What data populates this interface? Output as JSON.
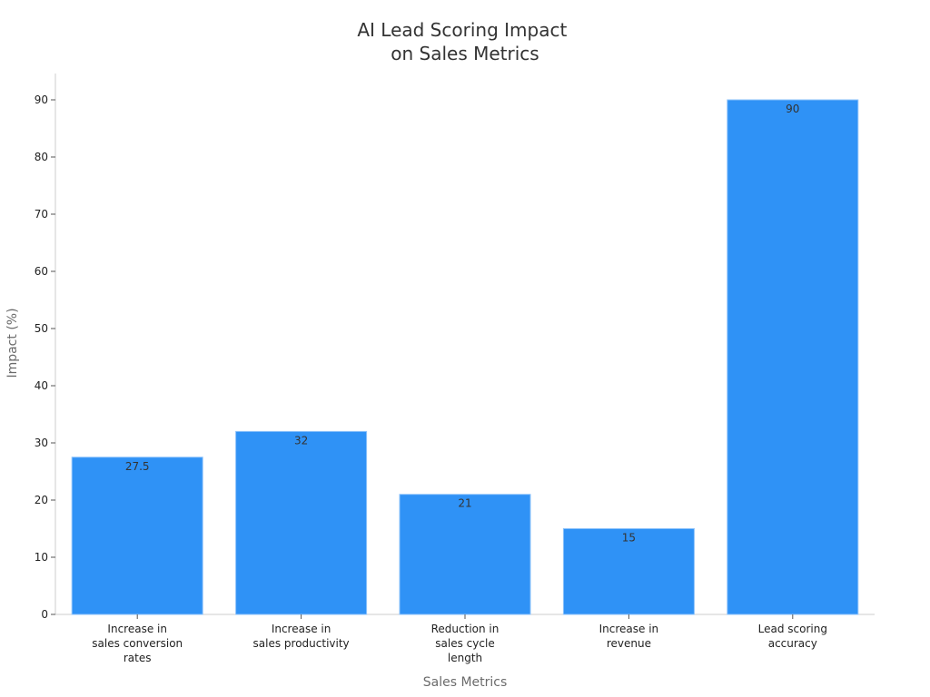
{
  "chart_data": {
    "type": "bar",
    "title": [
      "AI Lead Scoring Impact",
      "on Sales Metrics"
    ],
    "xlabel": "Sales Metrics",
    "ylabel": "Impact (%)",
    "categories": [
      [
        "Increase in",
        "sales conversion",
        "rates"
      ],
      [
        "Increase in",
        "sales productivity"
      ],
      [
        "Reduction in",
        "sales cycle",
        "length"
      ],
      [
        "Increase in",
        "revenue"
      ],
      [
        "Lead scoring",
        "accuracy"
      ]
    ],
    "values": [
      27.5,
      32,
      21,
      15,
      90
    ],
    "data_labels": [
      "27.5",
      "32",
      "21",
      "15",
      "90"
    ],
    "yticks": [
      0,
      10,
      20,
      30,
      40,
      50,
      60,
      70,
      80,
      90
    ],
    "ylim": [
      0,
      95
    ],
    "grid": false,
    "legend": "none",
    "colors": {
      "bar": "#2f92f6",
      "bar_edge": "#8ec3fb"
    }
  }
}
